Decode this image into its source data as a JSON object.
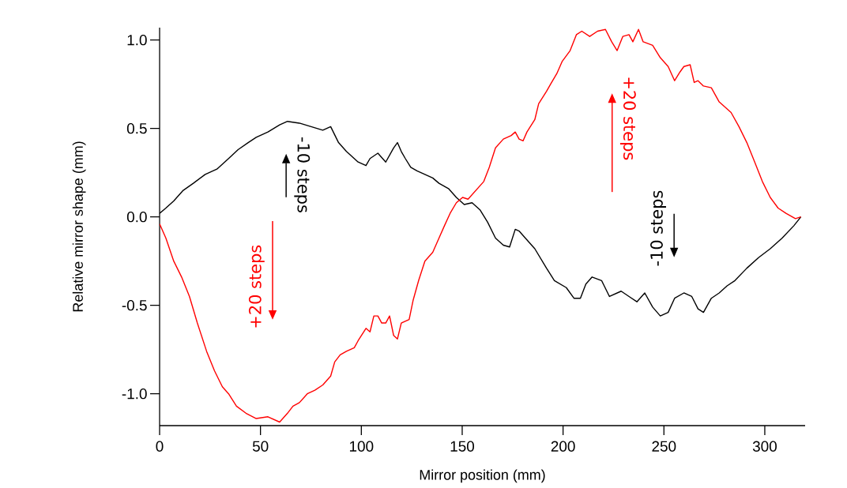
{
  "chart_data": {
    "type": "line",
    "xlabel": "Mirror position (mm)",
    "ylabel": "Relative mirror shape (mm)",
    "xlim": [
      0,
      320
    ],
    "ylim": [
      -1.18,
      1.07
    ],
    "xticks": [
      0,
      50,
      100,
      150,
      200,
      250,
      300
    ],
    "yticks": [
      {
        "value": -1,
        "label": "-1.0"
      },
      {
        "value": -0.5,
        "label": "-0.5"
      },
      {
        "value": 0,
        "label": "0.0"
      },
      {
        "value": 0.5,
        "label": "0.5"
      },
      {
        "value": 1,
        "label": "1.0"
      }
    ],
    "marker": "none",
    "line_style": "solid",
    "annotations": [
      "-10 steps",
      "+20 steps",
      "-10 steps",
      "+20 steps"
    ],
    "series": [
      {
        "color": "#000000",
        "x": [
          0,
          3.1,
          7,
          11.7,
          16.7,
          22.6,
          28.4,
          34.2,
          38.9,
          43.9,
          47.9,
          53.7,
          59.5,
          63.4,
          69.3,
          75.1,
          80.9,
          84.8,
          88.7,
          92.6,
          98.4,
          102.3,
          104.3,
          108.2,
          112.1,
          116,
          117.9,
          119.8,
          121.8,
          124.5,
          127.6,
          131.5,
          135.4,
          138.5,
          143.2,
          147.1,
          151,
          154.9,
          158.8,
          162.6,
          166.5,
          170.4,
          173.5,
          176.3,
          178.2,
          181.3,
          186,
          191.8,
          195.7,
          201.6,
          205.4,
          208.6,
          211.3,
          214.4,
          219.1,
          223,
          228.8,
          232.7,
          236.6,
          240.5,
          244.4,
          248.2,
          252.1,
          255.3,
          259.9,
          263.8,
          266.9,
          269.6,
          273.5,
          277.4,
          281.3,
          285.2,
          291.1,
          296.9,
          302.7,
          308.6,
          314.4,
          317.9
        ],
        "values": [
          0.02,
          0.05,
          0.09,
          0.15,
          0.19,
          0.24,
          0.27,
          0.33,
          0.38,
          0.42,
          0.45,
          0.48,
          0.52,
          0.54,
          0.53,
          0.51,
          0.49,
          0.51,
          0.42,
          0.37,
          0.31,
          0.29,
          0.33,
          0.36,
          0.31,
          0.39,
          0.42,
          0.37,
          0.33,
          0.28,
          0.26,
          0.24,
          0.22,
          0.19,
          0.16,
          0.11,
          0.07,
          0.08,
          0.04,
          -0.03,
          -0.12,
          -0.16,
          -0.17,
          -0.07,
          -0.08,
          -0.12,
          -0.18,
          -0.29,
          -0.36,
          -0.4,
          -0.46,
          -0.46,
          -0.38,
          -0.34,
          -0.36,
          -0.45,
          -0.42,
          -0.45,
          -0.48,
          -0.43,
          -0.51,
          -0.56,
          -0.54,
          -0.46,
          -0.43,
          -0.45,
          -0.52,
          -0.54,
          -0.46,
          -0.43,
          -0.39,
          -0.36,
          -0.29,
          -0.23,
          -0.18,
          -0.12,
          -0.05,
          0
        ]
      },
      {
        "color": "#ff0000",
        "x": [
          0,
          3.1,
          7,
          10.9,
          14.8,
          18.7,
          23.3,
          27.2,
          31.1,
          34.2,
          38.1,
          42.8,
          47.9,
          53.7,
          59.5,
          63.4,
          66.1,
          69.3,
          73.2,
          77,
          80.9,
          84.8,
          86.8,
          89.5,
          92.6,
          96.5,
          98.4,
          102.3,
          104.3,
          106.2,
          108.2,
          110.1,
          112.1,
          114,
          116,
          117.9,
          119.8,
          123.7,
          125.7,
          128.4,
          131.5,
          135.4,
          138.5,
          141.2,
          144,
          147.1,
          150.2,
          152.9,
          156.8,
          160.7,
          163.4,
          166.5,
          170.4,
          174.3,
          176.3,
          178.2,
          180.2,
          182.1,
          186,
          187.9,
          191.8,
          193.8,
          196.9,
          199.6,
          203.5,
          206.6,
          209.3,
          213.2,
          217.1,
          221,
          224.1,
          226.8,
          229.6,
          232.7,
          234.6,
          237.4,
          239.7,
          244.4,
          248.2,
          252.1,
          255.3,
          258,
          259.9,
          263,
          265,
          266.9,
          269.6,
          273.5,
          277.4,
          283.3,
          287.2,
          291.1,
          295,
          298.8,
          302.7,
          306.6,
          310.5,
          315.2,
          317.9
        ],
        "values": [
          -0.04,
          -0.12,
          -0.25,
          -0.34,
          -0.45,
          -0.6,
          -0.76,
          -0.87,
          -0.96,
          -1,
          -1.07,
          -1.11,
          -1.14,
          -1.13,
          -1.16,
          -1.11,
          -1.07,
          -1.05,
          -1,
          -0.98,
          -0.95,
          -0.9,
          -0.82,
          -0.78,
          -0.76,
          -0.74,
          -0.7,
          -0.63,
          -0.65,
          -0.56,
          -0.56,
          -0.6,
          -0.6,
          -0.56,
          -0.67,
          -0.69,
          -0.6,
          -0.58,
          -0.47,
          -0.36,
          -0.25,
          -0.2,
          -0.12,
          -0.05,
          0.02,
          0.08,
          0.11,
          0.1,
          0.15,
          0.2,
          0.28,
          0.39,
          0.44,
          0.46,
          0.48,
          0.44,
          0.43,
          0.48,
          0.55,
          0.64,
          0.71,
          0.75,
          0.81,
          0.88,
          0.94,
          1.03,
          1.05,
          1.02,
          1.05,
          1.06,
          0.99,
          0.94,
          1.02,
          1.03,
          0.99,
          1.06,
          0.99,
          0.97,
          0.9,
          0.85,
          0.77,
          0.82,
          0.85,
          0.86,
          0.76,
          0.77,
          0.74,
          0.73,
          0.65,
          0.59,
          0.51,
          0.42,
          0.31,
          0.2,
          0.11,
          0.05,
          0.02,
          -0.01,
          0
        ]
      }
    ]
  }
}
